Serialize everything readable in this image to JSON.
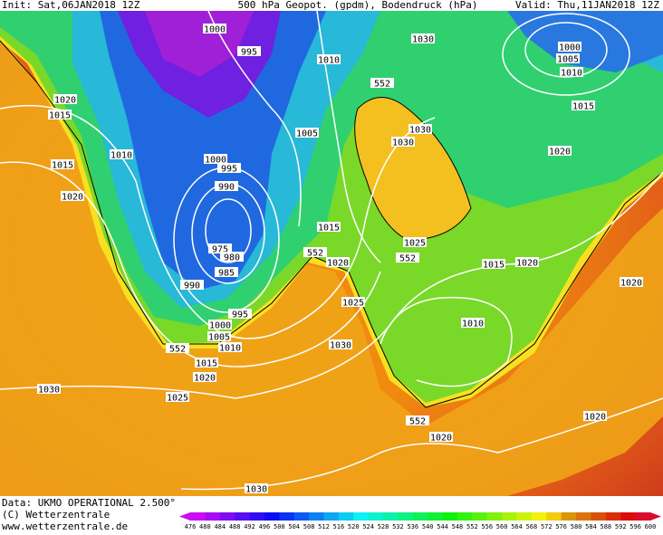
{
  "header": {
    "init": "Init: Sat,06JAN2018 12Z",
    "title": "500 hPa Geopot. (gpdm), Bodendruck (hPa)",
    "valid": "Valid: Thu,11JAN2018 12Z"
  },
  "isobar_labels": [
    "1000",
    "995",
    "1010",
    "1030",
    "1000",
    "1005",
    "1010",
    "552",
    "1020",
    "1015",
    "1015",
    "1005",
    "1030",
    "1030",
    "1020",
    "1010",
    "1000",
    "995",
    "1015",
    "990",
    "1020",
    "1015",
    "1025",
    "975",
    "980",
    "552",
    "1020",
    "552",
    "1015",
    "1020",
    "985",
    "1020",
    "990",
    "1025",
    "995",
    "1000",
    "1010",
    "1005",
    "552",
    "1010",
    "1030",
    "1015",
    "1020",
    "1030",
    "1025",
    "1020",
    "552",
    "1020",
    "1030"
  ],
  "footer": {
    "data": "Data: UKMO OPERATIONAL 2.500°",
    "copyright": "(C) Wetterzentrale",
    "url": "www.wetterzentrale.de"
  },
  "colorbar": {
    "levels": [
      476,
      480,
      484,
      488,
      492,
      496,
      500,
      504,
      508,
      512,
      516,
      520,
      524,
      528,
      532,
      536,
      540,
      544,
      548,
      552,
      556,
      560,
      564,
      568,
      572,
      576,
      580,
      584,
      588,
      592,
      596,
      600
    ]
  }
}
